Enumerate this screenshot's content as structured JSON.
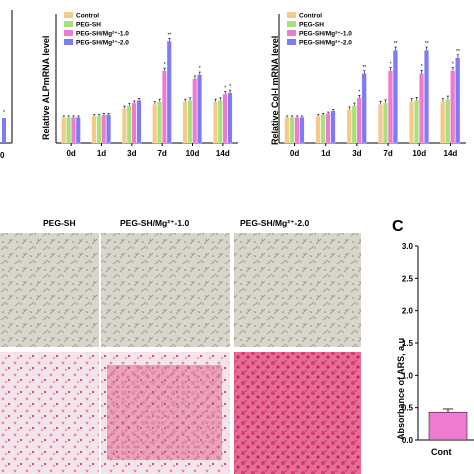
{
  "colors": {
    "Control": "#f5c98a",
    "PEG-SH": "#a8e07a",
    "PEG-SH/Mg2+-1.0": "#ef7bd0",
    "PEG-SH/Mg2+-2.0": "#7f7bf2",
    "stain_gray_bg": "#d8d6cc",
    "stain_fiber": "#8a8454",
    "stain_pink_bg": "#f2e4ea",
    "stain_pink": "#d83a72"
  },
  "panel_letter_c": "C",
  "micro_titles": [
    "PEG-SH",
    "PEG-SH/Mg²⁺-1.0",
    "PEG-SH/Mg²⁺-2.0"
  ],
  "chart_data": [
    {
      "id": "alp",
      "type": "bar",
      "ylabel": "Relative ALPmRNA level",
      "categories": [
        "0d",
        "1d",
        "3d",
        "7d",
        "10d",
        "14d"
      ],
      "legend": [
        "Control",
        "PEG-SH",
        "PEG-SH/Mg²⁺-1.0",
        "PEG-SH/Mg²⁺-2.0"
      ],
      "legend_placement": "top-left",
      "ylim": [
        0,
        5
      ],
      "series": [
        {
          "name": "Control",
          "values": [
            1.0,
            1.05,
            1.35,
            1.5,
            1.6,
            1.6
          ]
        },
        {
          "name": "PEG-SH",
          "values": [
            1.0,
            1.05,
            1.45,
            1.6,
            1.65,
            1.65
          ]
        },
        {
          "name": "PEG-SH/Mg²⁺-1.0",
          "values": [
            1.0,
            1.1,
            1.55,
            2.8,
            2.5,
            1.9
          ]
        },
        {
          "name": "PEG-SH/Mg²⁺-2.0",
          "values": [
            1.0,
            1.1,
            1.65,
            3.95,
            2.65,
            1.95
          ]
        }
      ],
      "errors": [
        0.05,
        0.05,
        0.08,
        0.1,
        0.1,
        0.1
      ],
      "sig_marks": [
        {
          "category": "7d",
          "series": 2,
          "text": "*"
        },
        {
          "category": "7d",
          "series": 3,
          "text": "**"
        },
        {
          "category": "10d",
          "series": 3,
          "text": "*"
        },
        {
          "category": "14d",
          "series": 2,
          "text": "*"
        },
        {
          "category": "14d",
          "series": 3,
          "text": "*"
        }
      ]
    },
    {
      "id": "col1",
      "type": "bar",
      "ylabel": "Relative Col-I mRNA level",
      "categories": [
        "0d",
        "1d",
        "3d",
        "7d",
        "10d",
        "14d"
      ],
      "legend": [
        "Control",
        "PEG-SH",
        "PEG-SH/Mg²⁺-1.0",
        "PEG-SH/Mg²⁺-2.0"
      ],
      "legend_placement": "top-left",
      "ylim": [
        0,
        5
      ],
      "series": [
        {
          "name": "Control",
          "values": [
            1.0,
            1.05,
            1.3,
            1.5,
            1.6,
            1.6
          ]
        },
        {
          "name": "PEG-SH",
          "values": [
            1.0,
            1.1,
            1.45,
            1.55,
            1.65,
            1.7
          ]
        },
        {
          "name": "PEG-SH/Mg²⁺-1.0",
          "values": [
            1.0,
            1.15,
            1.75,
            2.8,
            2.7,
            2.8
          ]
        },
        {
          "name": "PEG-SH/Mg²⁺-2.0",
          "values": [
            1.0,
            1.25,
            2.7,
            3.6,
            3.6,
            3.3
          ]
        }
      ],
      "errors": [
        0.05,
        0.05,
        0.1,
        0.12,
        0.12,
        0.12
      ],
      "sig_marks": [
        {
          "category": "3d",
          "series": 2,
          "text": "*"
        },
        {
          "category": "3d",
          "series": 3,
          "text": "**"
        },
        {
          "category": "7d",
          "series": 2,
          "text": "*"
        },
        {
          "category": "7d",
          "series": 3,
          "text": "**"
        },
        {
          "category": "10d",
          "series": 2,
          "text": "*"
        },
        {
          "category": "10d",
          "series": 3,
          "text": "**"
        },
        {
          "category": "14d",
          "series": 2,
          "text": "*"
        },
        {
          "category": "14d",
          "series": 3,
          "text": "**"
        }
      ]
    },
    {
      "id": "ars",
      "type": "bar",
      "ylabel": "Absorbance of ARS, a.u",
      "categories": [
        "Cont"
      ],
      "ylim": [
        0,
        3.0
      ],
      "yticks": [
        "0.0",
        "0.5",
        "1.0",
        "1.5",
        "2.0",
        "2.5",
        "3.0"
      ],
      "values": [
        0.43
      ],
      "errors": [
        0.05
      ],
      "color": "#ef7bd0"
    }
  ],
  "partial_left": {
    "tick_label": "0",
    "sig": "*"
  }
}
